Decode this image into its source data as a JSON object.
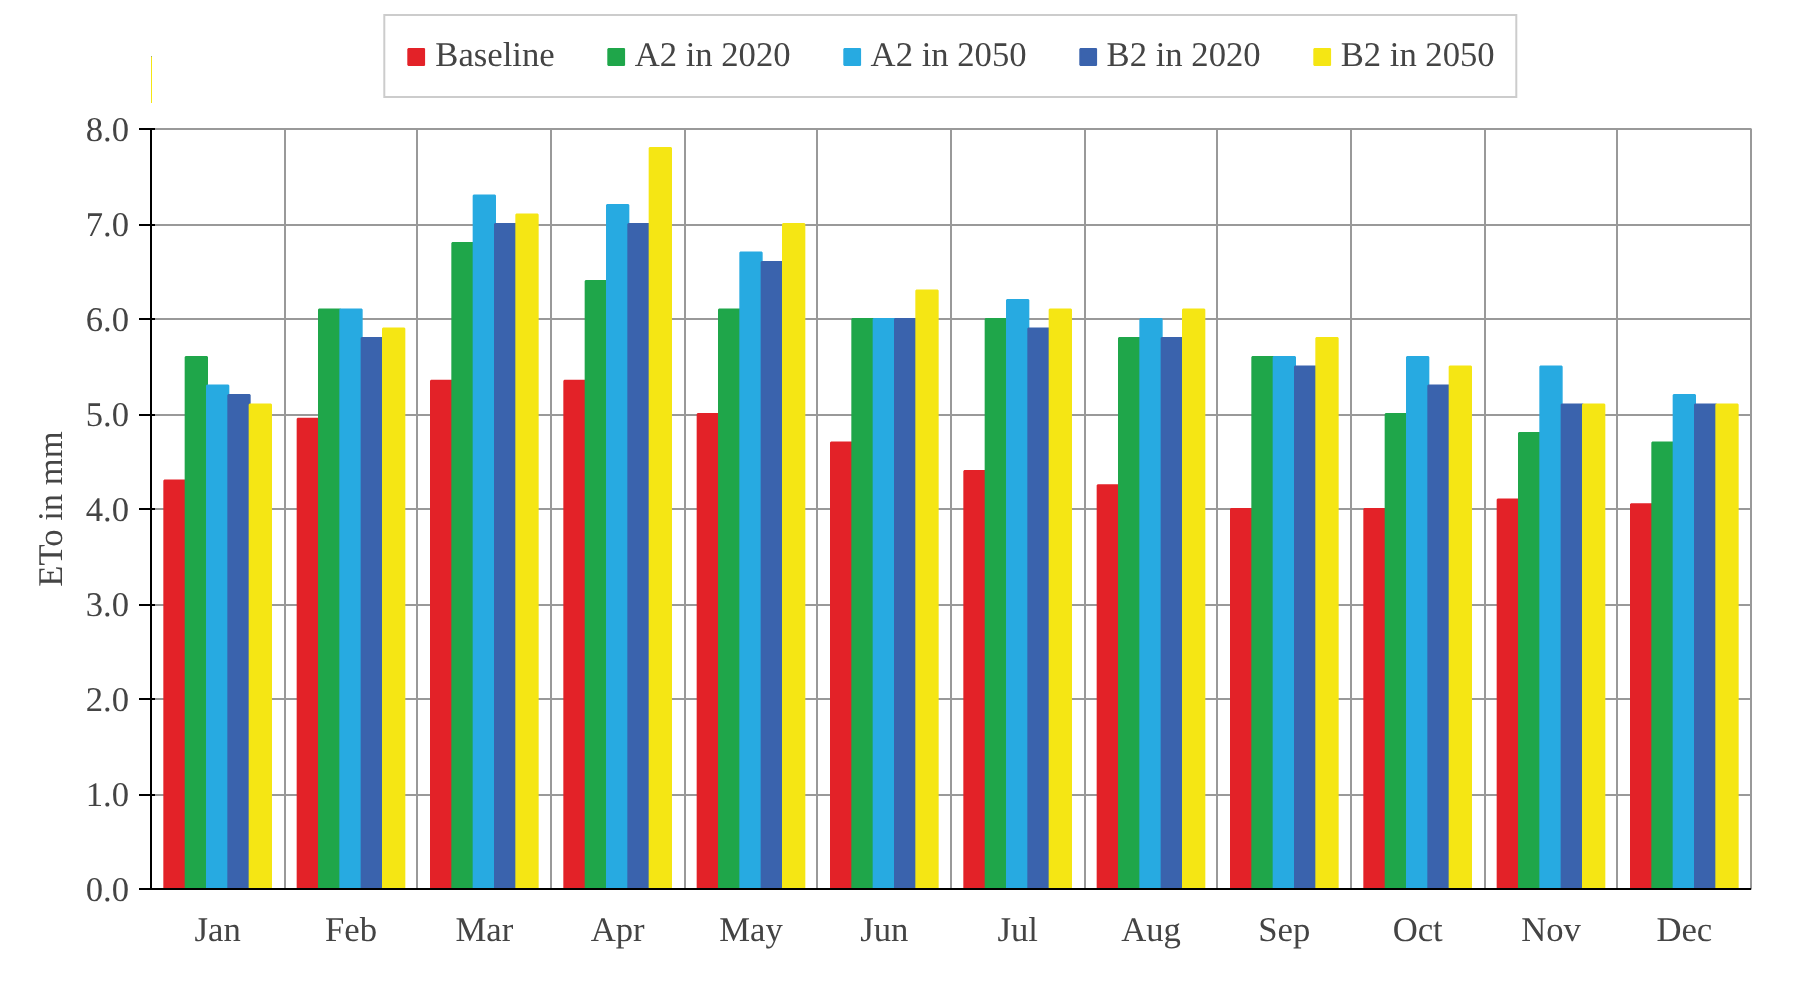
{
  "chart_data": {
    "type": "bar",
    "ylabel": "ETo in mm",
    "categories": [
      "Jan",
      "Feb",
      "Mar",
      "Apr",
      "May",
      "Jun",
      "Jul",
      "Aug",
      "Sep",
      "Oct",
      "Nov",
      "Dec"
    ],
    "series": [
      {
        "name": "Baseline",
        "color": "#e32228",
        "values": [
          4.3,
          4.95,
          5.35,
          5.35,
          5.0,
          4.7,
          4.4,
          4.25,
          4.0,
          4.0,
          4.1,
          4.05
        ]
      },
      {
        "name": "A2 in 2020",
        "color": "#1fa64a",
        "values": [
          5.6,
          6.1,
          6.8,
          6.4,
          6.1,
          6.0,
          6.0,
          5.8,
          5.6,
          5.0,
          4.8,
          4.7
        ]
      },
      {
        "name": "A2 in 2050",
        "color": "#27aae1",
        "values": [
          5.3,
          6.1,
          7.3,
          7.2,
          6.7,
          6.0,
          6.2,
          6.0,
          5.6,
          5.6,
          5.5,
          5.2
        ]
      },
      {
        "name": "B2 in 2020",
        "color": "#3a63ad",
        "values": [
          5.2,
          5.8,
          7.0,
          7.0,
          6.6,
          6.0,
          5.9,
          5.8,
          5.5,
          5.3,
          5.1,
          5.1
        ]
      },
      {
        "name": "B2 in 2050",
        "color": "#f5e614",
        "values": [
          5.1,
          5.9,
          7.1,
          7.8,
          7.0,
          6.3,
          6.1,
          6.1,
          5.8,
          5.5,
          5.1,
          5.1
        ]
      }
    ],
    "ylim": [
      0,
      8
    ],
    "yticks": [
      {
        "value": 0,
        "label": "0.0"
      },
      {
        "value": 1,
        "label": "1.0"
      },
      {
        "value": 2,
        "label": "2.0"
      },
      {
        "value": 3,
        "label": "3.0"
      },
      {
        "value": 4,
        "label": "4.0"
      },
      {
        "value": 5,
        "label": "5.0"
      },
      {
        "value": 6,
        "label": "6.0"
      },
      {
        "value": 7,
        "label": "7.0"
      },
      {
        "value": 8,
        "label": "8.0"
      }
    ],
    "grid": true,
    "legend": "top"
  }
}
